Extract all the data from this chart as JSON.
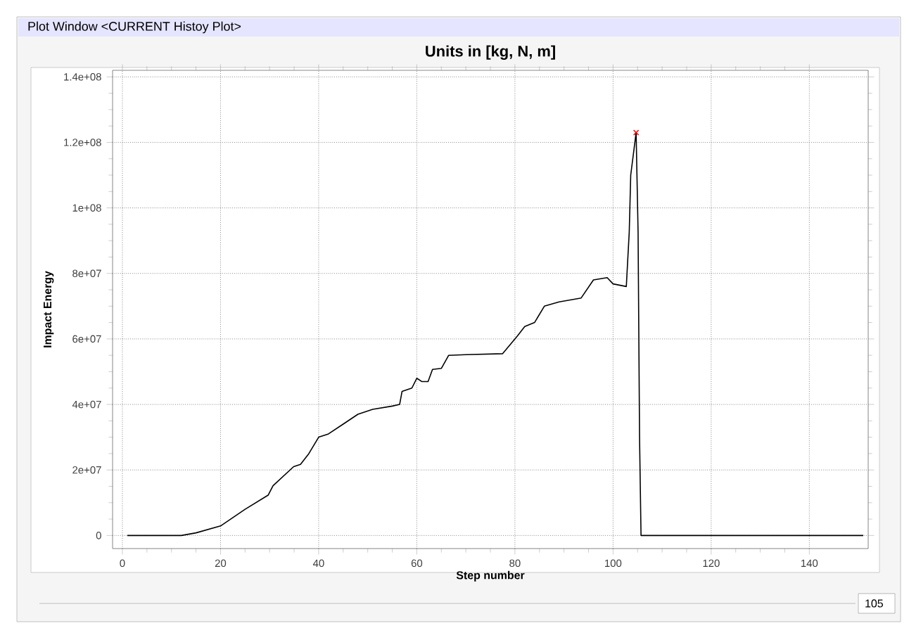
{
  "chart_data": {
    "type": "line",
    "title": "Units in [kg, N, m]",
    "xlabel": "Step number",
    "ylabel": "Impact Energy",
    "annotations": [
      "Plot Window <CURRENT Histoy Plot>",
      "105"
    ],
    "xlim": [
      -2,
      152
    ],
    "ylim": [
      -4000000,
      142000000
    ],
    "xticks": [
      0,
      20,
      40,
      60,
      80,
      100,
      120,
      140
    ],
    "yticks": [
      0,
      {
        "value": 20000000,
        "label": "2e+07"
      },
      {
        "value": 40000000,
        "label": "4e+07"
      },
      {
        "value": 60000000,
        "label": "6e+07"
      },
      {
        "value": 80000000,
        "label": "8e+07"
      },
      {
        "value": 100000000,
        "label": "1e+08"
      },
      {
        "value": 120000000,
        "label": "1.2e+08"
      },
      {
        "value": 140000000,
        "label": "1.4e+08"
      }
    ],
    "grid": true,
    "series": [
      {
        "color": "#000000",
        "x": [
          1,
          12,
          15,
          20,
          25,
          29.7,
          30.7,
          34.9,
          36.3,
          38,
          40,
          42,
          45,
          48,
          51,
          55,
          56.5,
          57,
          59,
          60,
          61,
          62.3,
          63.2,
          65,
          66.5,
          70,
          77.5,
          80.5,
          82,
          84,
          86,
          89,
          93.5,
          96,
          98.8,
          100,
          102.7,
          103.3,
          103.6,
          104.7,
          105.1,
          105.4,
          105.7,
          120,
          151
        ],
        "values": [
          0,
          0,
          800000,
          2900000,
          8000000,
          12300000,
          15200000,
          21000000,
          21700000,
          25000000,
          30000000,
          31000000,
          34000000,
          37000000,
          38500000,
          39500000,
          40000000,
          44000000,
          45000000,
          48000000,
          47000000,
          47000000,
          50700000,
          51000000,
          55000000,
          55200000,
          55500000,
          60900000,
          63800000,
          65000000,
          70000000,
          71300000,
          72500000,
          78000000,
          78700000,
          76800000,
          76000000,
          92700000,
          110000000,
          123000000,
          92700000,
          30000000,
          0,
          0,
          0
        ]
      },
      {
        "type": "scatter",
        "color": "#ff0000",
        "marker": "cross",
        "x": [
          104.7
        ],
        "values": [
          123000000
        ]
      }
    ]
  }
}
